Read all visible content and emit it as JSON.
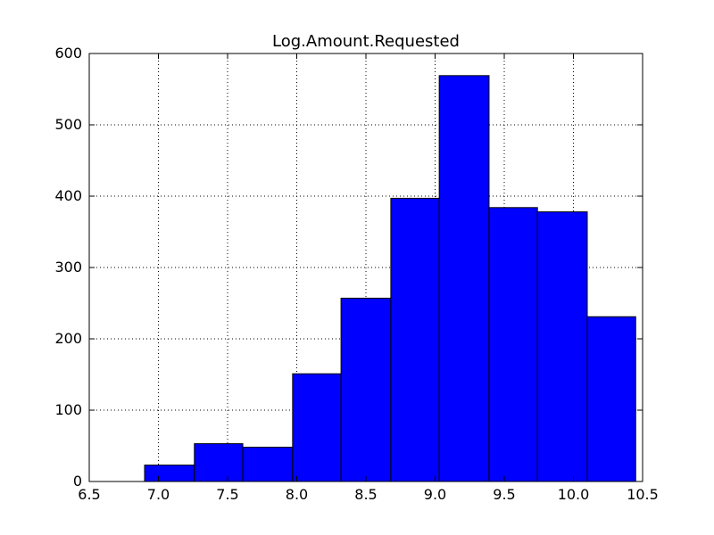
{
  "chart_data": {
    "type": "bar",
    "title": "Log.Amount.Requested",
    "xlabel": "",
    "ylabel": "",
    "xlim": [
      6.5,
      10.5
    ],
    "ylim": [
      0,
      600
    ],
    "x_ticks": [
      "6.5",
      "7.0",
      "7.5",
      "8.0",
      "8.5",
      "9.0",
      "9.5",
      "10.0",
      "10.5"
    ],
    "y_ticks": [
      "0",
      "100",
      "200",
      "300",
      "400",
      "500",
      "600"
    ],
    "bins": [
      {
        "start": 6.9,
        "end": 7.26,
        "value": 23
      },
      {
        "start": 7.26,
        "end": 7.61,
        "value": 53
      },
      {
        "start": 7.61,
        "end": 7.97,
        "value": 48
      },
      {
        "start": 7.97,
        "end": 8.32,
        "value": 151
      },
      {
        "start": 8.32,
        "end": 8.68,
        "value": 257
      },
      {
        "start": 8.68,
        "end": 9.03,
        "value": 397
      },
      {
        "start": 9.03,
        "end": 9.39,
        "value": 569
      },
      {
        "start": 9.39,
        "end": 9.74,
        "value": 384
      },
      {
        "start": 9.74,
        "end": 10.1,
        "value": 378
      },
      {
        "start": 10.1,
        "end": 10.45,
        "value": 231
      }
    ],
    "grid": true,
    "bar_color": "#0000ff",
    "edge_color": "#000000"
  }
}
